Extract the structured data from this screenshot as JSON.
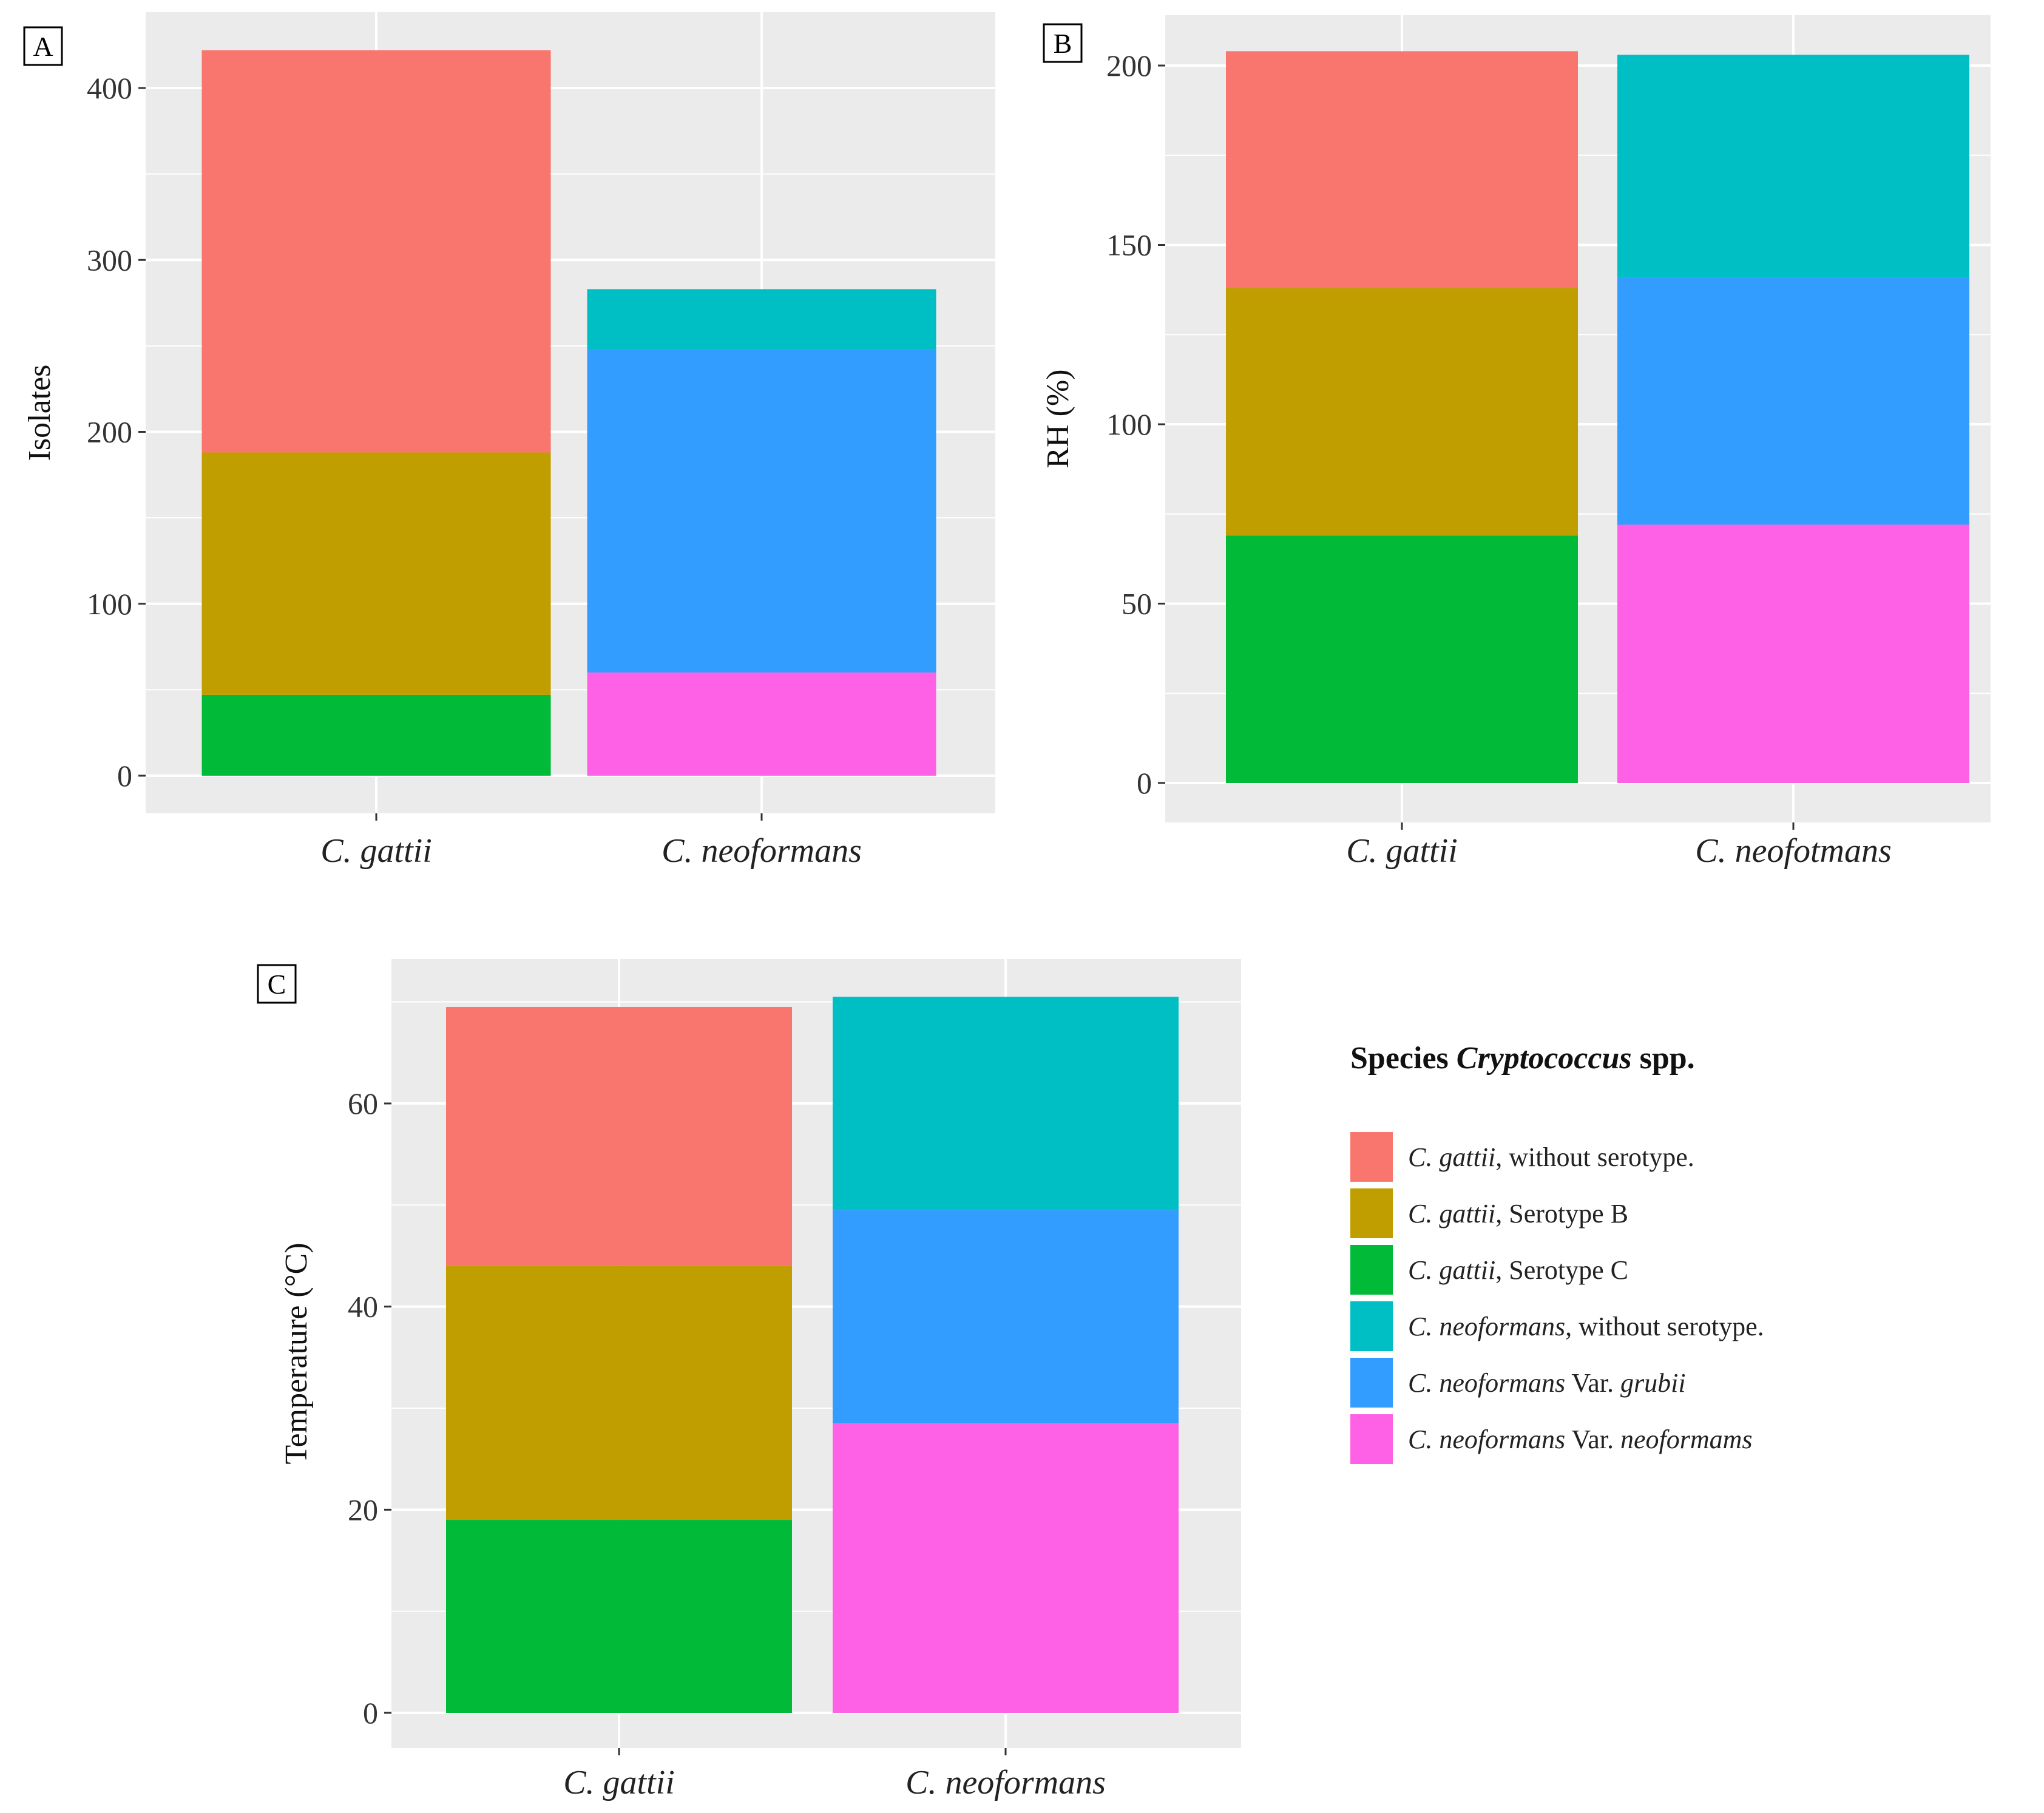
{
  "chart_data": [
    {
      "panel": "A",
      "type": "bar",
      "stacked": true,
      "categories": [
        "C. gattii",
        "C. neoformans"
      ],
      "ylabel": "Isolates",
      "xlabel": "",
      "ylim": [
        0,
        440
      ],
      "yticks": [
        0,
        100,
        200,
        300,
        400
      ],
      "series": [
        {
          "name": "C. gattii, Serotype C",
          "values": [
            47,
            0
          ]
        },
        {
          "name": "C. gattii, Serotype B",
          "values": [
            141,
            0
          ]
        },
        {
          "name": "C. gattii, without serotype.",
          "values": [
            234,
            0
          ]
        },
        {
          "name": "C. neoformans Var. neoformams",
          "values": [
            0,
            60
          ]
        },
        {
          "name": "C. neoformans Var. grubii",
          "values": [
            0,
            188
          ]
        },
        {
          "name": "C. neoformans, without serotype.",
          "values": [
            0,
            35
          ]
        }
      ]
    },
    {
      "panel": "B",
      "type": "bar",
      "stacked": true,
      "categories": [
        "C. gattii",
        "C. neofotmans"
      ],
      "ylabel": "RH (%)",
      "xlabel": "",
      "ylim": [
        0,
        210
      ],
      "yticks": [
        0,
        50,
        100,
        150,
        200
      ],
      "series": [
        {
          "name": "C. gattii, Serotype C",
          "values": [
            69,
            0
          ]
        },
        {
          "name": "C. gattii, Serotype B",
          "values": [
            69,
            0
          ]
        },
        {
          "name": "C. gattii, without serotype.",
          "values": [
            66,
            0
          ]
        },
        {
          "name": "C. neoformans Var. neoformams",
          "values": [
            0,
            72
          ]
        },
        {
          "name": "C. neoformans Var. grubii",
          "values": [
            0,
            69
          ]
        },
        {
          "name": "C. neoformans, without serotype.",
          "values": [
            0,
            62
          ]
        }
      ]
    },
    {
      "panel": "C",
      "type": "bar",
      "stacked": true,
      "categories": [
        "C. gattii",
        "C. neoformans"
      ],
      "ylabel": "Temperature (°C)",
      "xlabel": "",
      "ylim": [
        0,
        73
      ],
      "yticks": [
        0,
        20,
        40,
        60
      ],
      "series": [
        {
          "name": "C. gattii, Serotype C",
          "values": [
            19,
            0
          ]
        },
        {
          "name": "C. gattii, Serotype B",
          "values": [
            25,
            0
          ]
        },
        {
          "name": "C. gattii, without serotype.",
          "values": [
            25.5,
            0
          ]
        },
        {
          "name": "C. neoformans Var. neoformams",
          "values": [
            0,
            28.5
          ]
        },
        {
          "name": "C. neoformans Var. grubii",
          "values": [
            0,
            21
          ]
        },
        {
          "name": "C. neoformans, without serotype.",
          "values": [
            0,
            21
          ]
        }
      ]
    }
  ],
  "colors": {
    "C. gattii, without serotype.": "#F8766D",
    "C. gattii, Serotype B": "#C09E00",
    "C. gattii, Serotype C": "#00BA38",
    "C. neoformans, without serotype.": "#00BFC4",
    "C. neoformans Var. grubii": "#339CFF",
    "C. neoformans Var. neoformams": "#FF61E6",
    "panel_background": "#EBEBEB",
    "grid": "#FFFFFF"
  },
  "legend": {
    "title_prefix": "Species",
    "title_genus": "Cryptococcus",
    "title_suffix": "spp.",
    "entries": [
      {
        "key": "C. gattii, without serotype.",
        "italic": "C. gattii",
        "rest": ", without serotype."
      },
      {
        "key": "C. gattii, Serotype B",
        "italic": "C. gattii",
        "rest": ", Serotype B"
      },
      {
        "key": "C. gattii, Serotype C",
        "italic": "C. gattii",
        "rest": ", Serotype C"
      },
      {
        "key": "C. neoformans, without serotype.",
        "italic": "C. neoformans",
        "rest": ", without serotype."
      },
      {
        "key": "C. neoformans Var. grubii",
        "italic": "C. neoformans",
        "rest": " Var. ",
        "italic2": "grubii"
      },
      {
        "key": "C. neoformans Var. neoformams",
        "italic": "C. neoformans",
        "rest": " Var. ",
        "italic2": "neoformams"
      }
    ]
  }
}
